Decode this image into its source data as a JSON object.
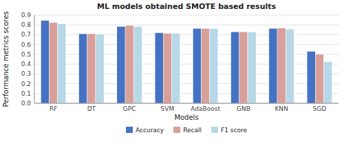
{
  "chart_data": {
    "type": "bar",
    "title": "ML models obtained SMOTE based results",
    "xlabel": "Models",
    "ylabel": "Performance metrics scores",
    "categories": [
      "RF",
      "DT",
      "GPC",
      "SVM",
      "AdaBoost",
      "GNB",
      "KNN",
      "SGD"
    ],
    "series": [
      {
        "name": "Accuracy",
        "color": "#4472c4",
        "values": [
          0.845,
          0.71,
          0.785,
          0.72,
          0.765,
          0.73,
          0.765,
          0.53
        ]
      },
      {
        "name": "Recall",
        "color": "#d9a09a",
        "values": [
          0.825,
          0.71,
          0.795,
          0.715,
          0.765,
          0.73,
          0.768,
          0.5
        ]
      },
      {
        "name": "F1 score",
        "color": "#b8d8e8",
        "values": [
          0.81,
          0.705,
          0.785,
          0.715,
          0.762,
          0.728,
          0.758,
          0.425
        ]
      }
    ],
    "ylim": [
      0,
      0.9
    ],
    "yticks": [
      {
        "value": 0,
        "label": "0.0"
      },
      0.1,
      0.2,
      0.3,
      0.4,
      0.5,
      0.6,
      0.7,
      0.8,
      0.9
    ],
    "grid": true,
    "legend": "bottom"
  }
}
